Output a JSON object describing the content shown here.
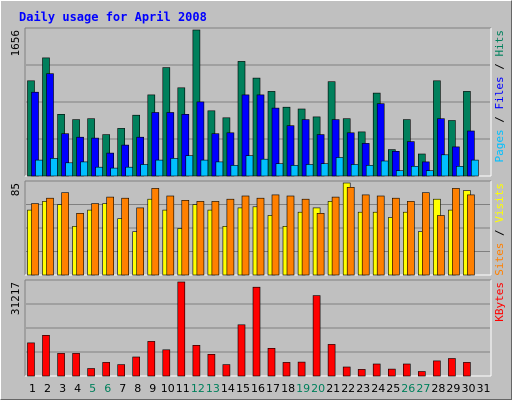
{
  "chart_data": [
    {
      "type": "bar",
      "title": "Daily usage for April 2008",
      "ylabel": "1656",
      "legend": [
        "Pages",
        "Files",
        "Hits"
      ],
      "legend_placement": "right",
      "grid": true,
      "categories": [
        "1",
        "2",
        "3",
        "4",
        "5",
        "6",
        "7",
        "8",
        "9",
        "10",
        "11",
        "12",
        "13",
        "14",
        "15",
        "16",
        "17",
        "18",
        "19",
        "20",
        "21",
        "22",
        "23",
        "24",
        "25",
        "26",
        "27",
        "28",
        "29",
        "30",
        "31"
      ],
      "weekend_categories": [
        "5",
        "6",
        "12",
        "13",
        "19",
        "20",
        "26",
        "27"
      ],
      "ylim": [
        0,
        1656
      ],
      "series": [
        {
          "name": "Hits",
          "color": "#00805c",
          "values": [
            1080,
            1340,
            700,
            640,
            650,
            470,
            540,
            690,
            920,
            1230,
            1000,
            1656,
            740,
            660,
            1300,
            1110,
            960,
            780,
            760,
            670,
            1070,
            650,
            500,
            940,
            300,
            640,
            250,
            1080,
            630,
            960,
            0
          ]
        },
        {
          "name": "Files",
          "color": "#0000ff",
          "values": [
            950,
            1160,
            480,
            440,
            430,
            260,
            350,
            440,
            720,
            720,
            700,
            840,
            480,
            490,
            920,
            920,
            770,
            570,
            640,
            470,
            640,
            490,
            370,
            820,
            280,
            390,
            160,
            650,
            330,
            510,
            0
          ]
        },
        {
          "name": "Pages",
          "color": "#00c0ff",
          "values": [
            180,
            200,
            150,
            160,
            100,
            90,
            100,
            130,
            180,
            200,
            230,
            180,
            160,
            120,
            230,
            190,
            140,
            120,
            130,
            140,
            210,
            130,
            120,
            170,
            60,
            110,
            60,
            240,
            110,
            180,
            0
          ]
        }
      ]
    },
    {
      "type": "bar",
      "ylabel": "85",
      "legend": [
        "Sites",
        "Visits"
      ],
      "legend_placement": "right",
      "grid": true,
      "ylim": [
        0,
        85
      ],
      "series": [
        {
          "name": "Visits",
          "color": "#ffff00",
          "values": [
            60,
            68,
            65,
            45,
            60,
            66,
            52,
            40,
            70,
            60,
            43,
            65,
            60,
            45,
            62,
            63,
            55,
            45,
            58,
            62,
            68,
            85,
            58,
            58,
            53,
            58,
            40,
            70,
            60,
            78,
            0
          ]
        },
        {
          "name": "Sites",
          "color": "#ff8000",
          "values": [
            66,
            71,
            76,
            57,
            66,
            72,
            71,
            62,
            80,
            73,
            69,
            68,
            68,
            70,
            73,
            71,
            74,
            73,
            70,
            57,
            72,
            81,
            74,
            73,
            71,
            68,
            76,
            55,
            80,
            74,
            0
          ]
        }
      ]
    },
    {
      "type": "bar",
      "ylabel": "31217",
      "legend": [
        "KBytes"
      ],
      "legend_placement": "right",
      "grid": true,
      "ylim": [
        0,
        31217
      ],
      "series": [
        {
          "name": "KBytes",
          "color": "#ff0000",
          "values": [
            11000,
            13500,
            7500,
            7500,
            2500,
            4500,
            3800,
            6300,
            11500,
            8700,
            31217,
            10200,
            7200,
            3800,
            17000,
            29500,
            9200,
            4500,
            4600,
            26700,
            10500,
            3000,
            2200,
            4000,
            2300,
            4000,
            1500,
            5000,
            5800,
            4500,
            0
          ]
        }
      ]
    }
  ],
  "colors": {
    "background": "#c0c0c0",
    "title": "#0000ff",
    "weekday_label": "#000000",
    "weekend_label": "#00805c",
    "gridline": "#808080",
    "bar_outline": "#000000"
  }
}
